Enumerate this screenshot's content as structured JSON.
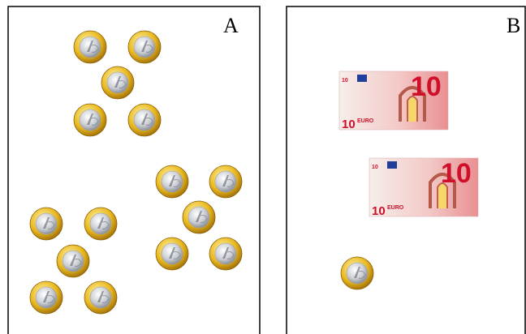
{
  "panels": [
    {
      "label": "A"
    },
    {
      "label": "B"
    }
  ],
  "banknote": {
    "denomination": "10",
    "currency": "EURO"
  }
}
